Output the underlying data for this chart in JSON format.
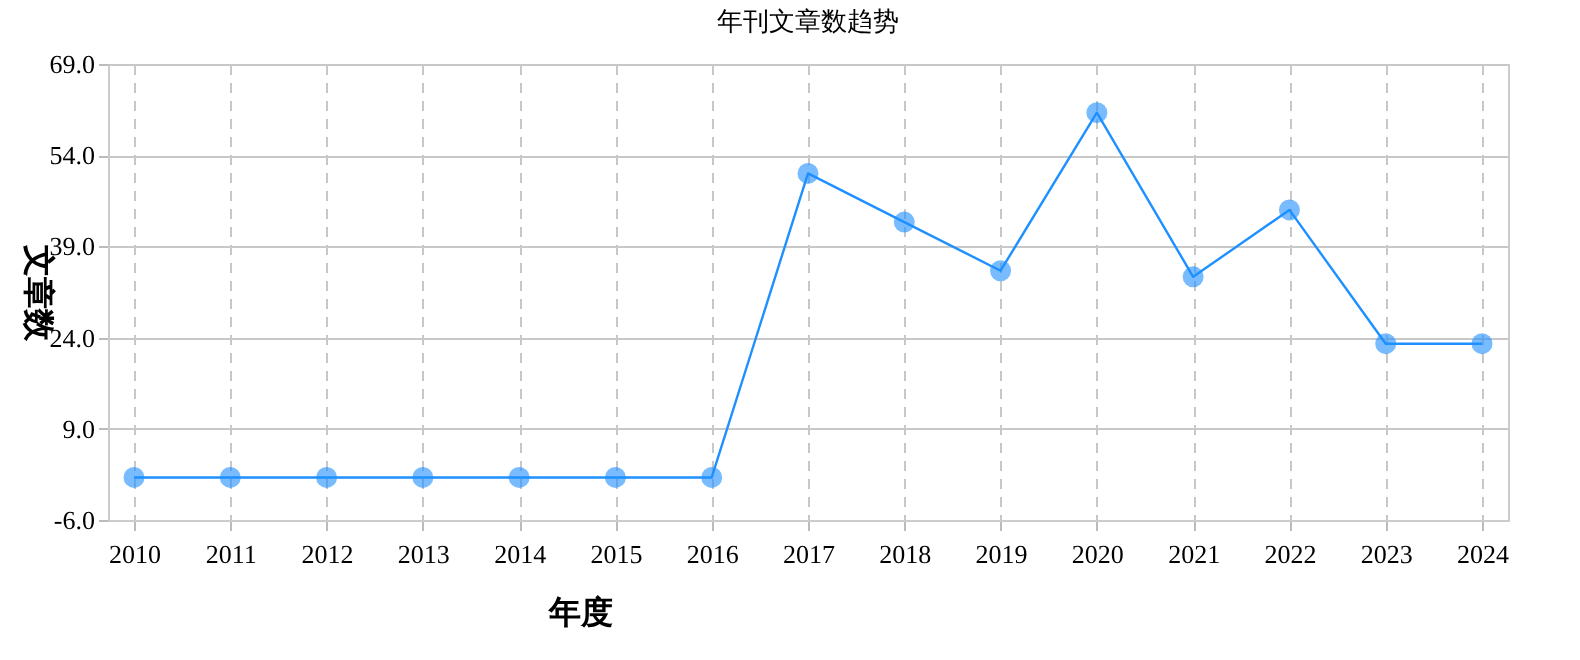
{
  "chart_data": {
    "type": "line",
    "title": "年刊文章数趋势",
    "xlabel": "年度",
    "ylabel": "文章数",
    "categories": [
      "2010",
      "2011",
      "2012",
      "2013",
      "2014",
      "2015",
      "2016",
      "2017",
      "2018",
      "2019",
      "2020",
      "2021",
      "2022",
      "2023",
      "2024"
    ],
    "series": [
      {
        "color": "#1e90ff",
        "values": [
          1,
          1,
          1,
          1,
          1,
          1,
          1,
          51,
          43,
          35,
          61,
          34,
          45,
          23,
          23
        ]
      }
    ],
    "ylim": [
      -6,
      69
    ],
    "yticks": [
      {
        "value": -6,
        "label": "-6.0"
      },
      {
        "value": 9,
        "label": "9.0"
      },
      {
        "value": 24,
        "label": "24.0"
      },
      {
        "value": 39,
        "label": "39.0"
      },
      {
        "value": 54,
        "label": "54.0"
      },
      {
        "value": 69,
        "label": "69.0"
      }
    ],
    "grid": true,
    "marker": "circle",
    "line_style": "solid"
  }
}
